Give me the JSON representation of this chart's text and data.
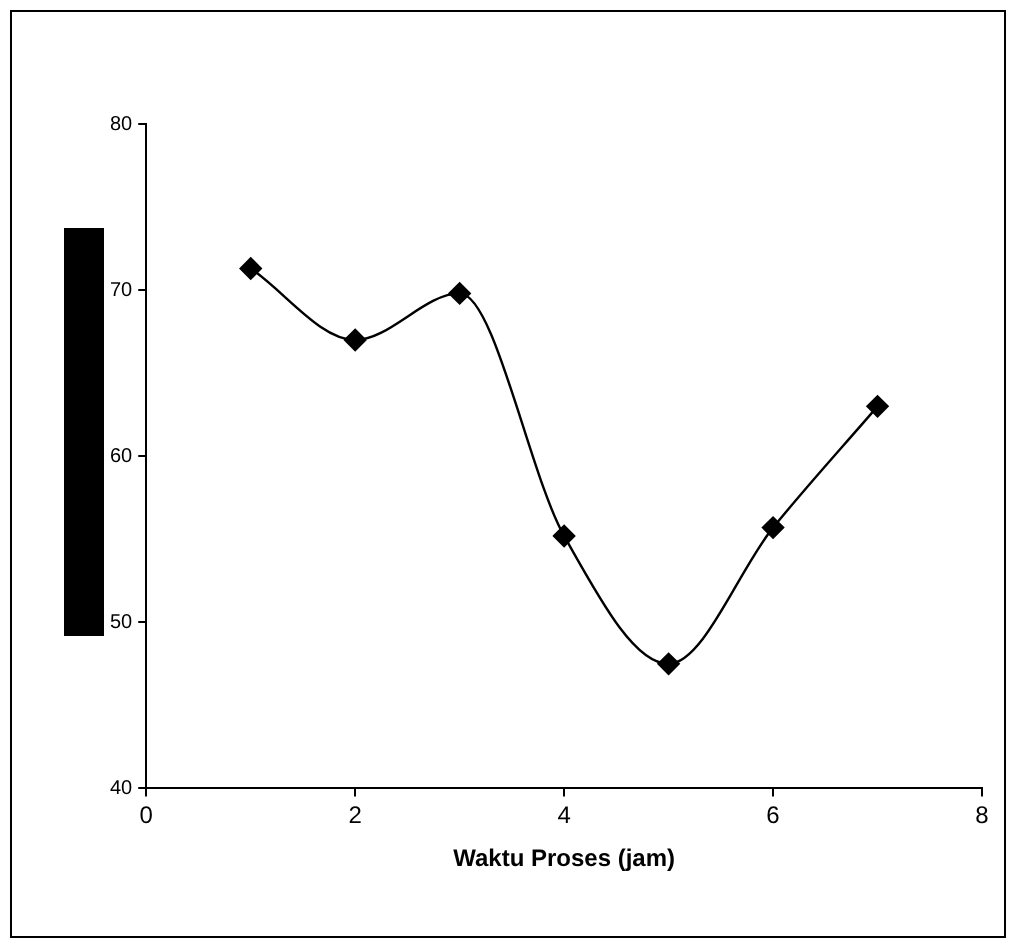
{
  "chart_data": {
    "type": "line",
    "xlabel": "Waktu Proses (jam)",
    "x": [
      1,
      2,
      3,
      4,
      5,
      6,
      7
    ],
    "series": [
      {
        "color": "#000000",
        "values": [
          71.3,
          67,
          69.8,
          55.2,
          47.5,
          55.7,
          63
        ]
      }
    ],
    "xlim": [
      0,
      8
    ],
    "xticks": [
      0,
      2,
      4,
      6,
      8
    ],
    "ylim": [
      40,
      80
    ],
    "yticks": [
      40,
      50,
      60,
      70,
      80
    ],
    "grid": false,
    "legend": false,
    "marker": "diamond",
    "line_style": "solid"
  }
}
